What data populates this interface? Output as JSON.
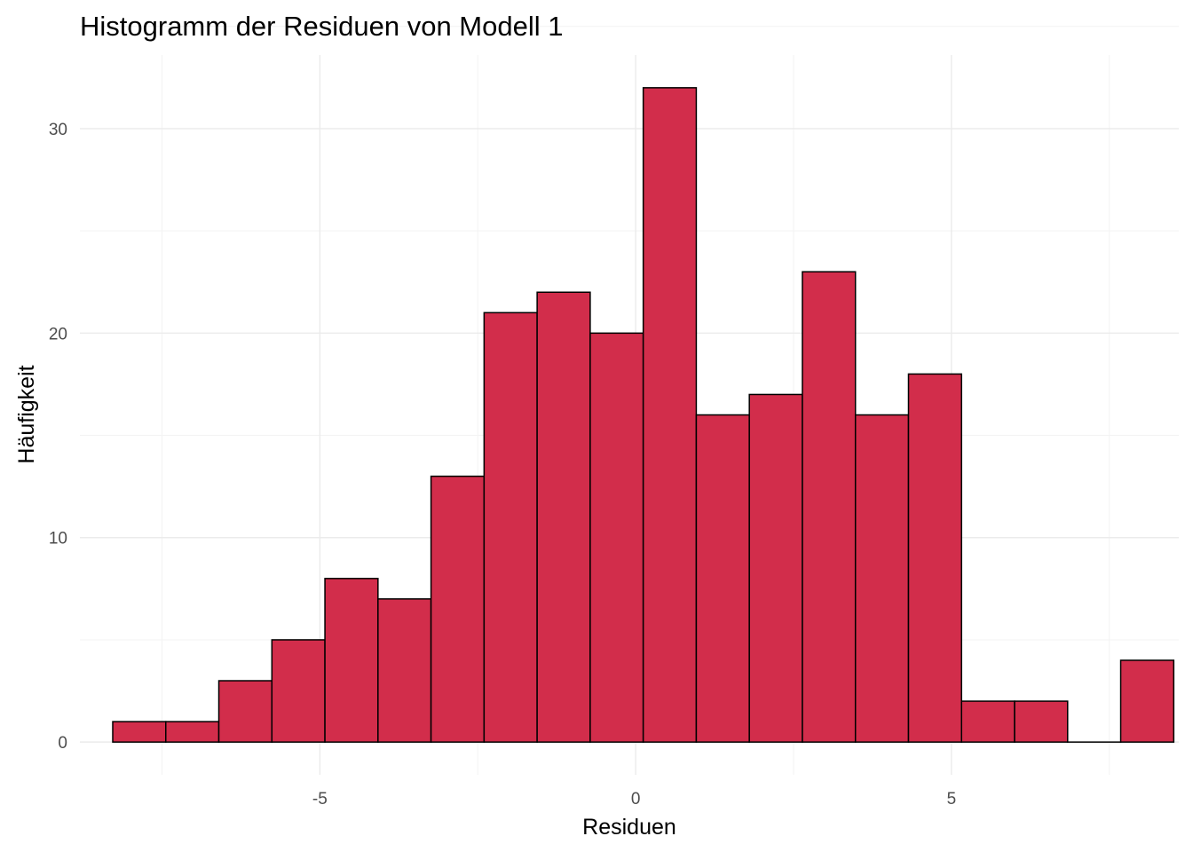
{
  "chart_data": {
    "type": "bar",
    "subtype": "histogram",
    "title": "Histogramm der Residuen von Modell 1",
    "xlabel": "Residuen",
    "ylabel": "Häufigkeit",
    "bin_width": 0.84,
    "bin_edges": [
      -8.28,
      -7.44,
      -6.6,
      -5.76,
      -4.92,
      -4.08,
      -3.24,
      -2.4,
      -1.56,
      -0.72,
      0.12,
      0.96,
      1.8,
      2.64,
      3.48,
      4.32,
      5.16,
      6.0,
      6.84,
      7.68
    ],
    "bin_centers": [
      -7.86,
      -7.02,
      -6.18,
      -5.34,
      -4.5,
      -3.66,
      -2.82,
      -1.98,
      -1.14,
      -0.3,
      0.54,
      1.38,
      2.22,
      3.06,
      3.9,
      4.74,
      5.58,
      6.42,
      7.26,
      8.1
    ],
    "values": [
      1,
      1,
      3,
      5,
      8,
      7,
      13,
      21,
      22,
      20,
      32,
      16,
      17,
      23,
      16,
      18,
      2,
      2,
      0,
      4
    ],
    "xlim": [
      -8.8,
      8.6
    ],
    "ylim": [
      -1.6,
      33.6
    ],
    "x_ticks": [
      -5,
      0,
      5
    ],
    "x_tick_labels": [
      "-5",
      "0",
      "5"
    ],
    "y_ticks": [
      0,
      10,
      20,
      30
    ],
    "y_tick_labels": [
      "0",
      "10",
      "20",
      "30"
    ],
    "grid": true,
    "legend": "none",
    "fill_color": "#d22d4b",
    "edge_color": "#000000"
  }
}
